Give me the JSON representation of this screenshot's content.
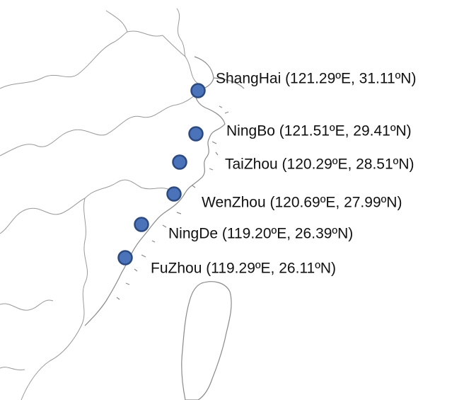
{
  "cities": [
    {
      "label": "ShangHai (121.29ºE, 31.11ºN)"
    },
    {
      "label": "NingBo (121.51ºE, 29.41ºN)"
    },
    {
      "label": "TaiZhou (120.29ºE, 28.51ºN)"
    },
    {
      "label": "WenZhou (120.69ºE, 27.99ºN)"
    },
    {
      "label": "NingDe (119.20ºE, 26.39ºN)"
    },
    {
      "label": "FuZhou (119.29ºE, 26.11ºN)"
    }
  ]
}
